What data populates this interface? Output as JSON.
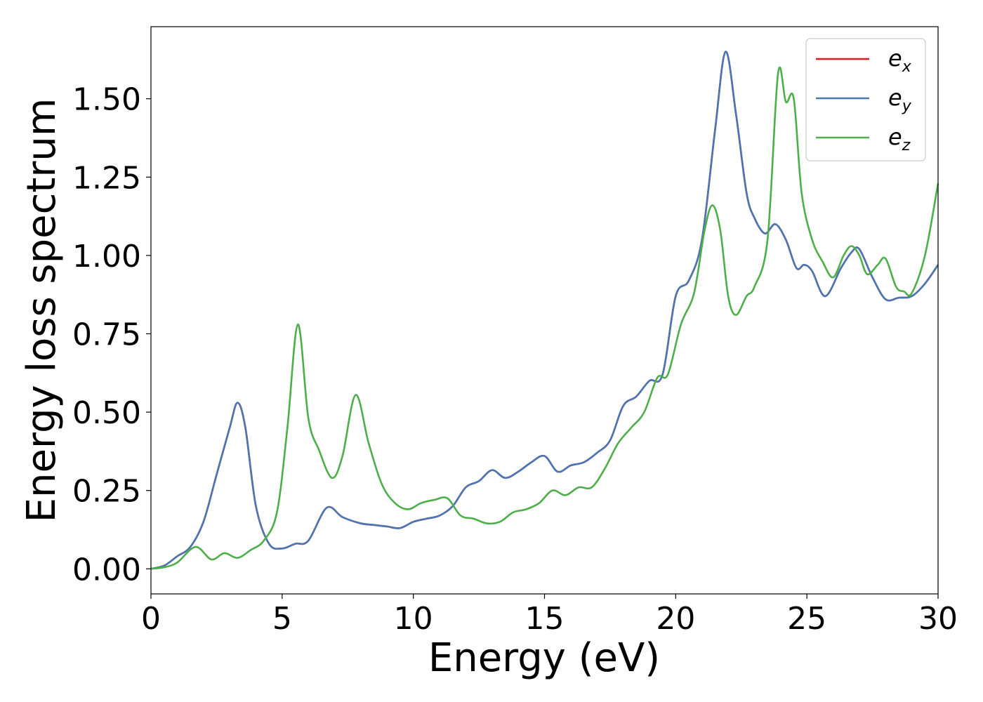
{
  "chart_data": {
    "type": "line",
    "title": "",
    "xlabel": "Energy (eV)",
    "ylabel": "Energy loss spectrum",
    "xlim": [
      0,
      30
    ],
    "ylim": [
      -0.08,
      1.73
    ],
    "xticks": [
      0,
      5,
      10,
      15,
      20,
      25,
      30
    ],
    "xtick_labels": [
      "0",
      "5",
      "10",
      "15",
      "20",
      "25",
      "30"
    ],
    "yticks": [
      0.0,
      0.25,
      0.5,
      0.75,
      1.0,
      1.25,
      1.5
    ],
    "ytick_labels": [
      "0.00",
      "0.25",
      "0.50",
      "0.75",
      "1.00",
      "1.25",
      "1.50"
    ],
    "grid": false,
    "legend_position": "top-right",
    "series": [
      {
        "name": "e_x",
        "legend_base": "e",
        "legend_sub": "x",
        "color": "#e41a1c",
        "x": [
          0.0,
          0.5,
          1.0,
          1.5,
          2.0,
          2.5,
          3.0,
          3.3,
          3.6,
          4.0,
          4.5,
          5.0,
          5.5,
          6.0,
          6.7,
          7.3,
          8.0,
          8.5,
          9.0,
          9.5,
          10.0,
          10.5,
          11.0,
          11.5,
          12.0,
          12.5,
          13.0,
          13.5,
          14.0,
          14.5,
          15.0,
          15.5,
          16.0,
          16.5,
          17.0,
          17.5,
          18.0,
          18.5,
          19.0,
          19.5,
          20.0,
          20.5,
          21.0,
          21.5,
          21.9,
          22.3,
          22.7,
          23.0,
          23.4,
          23.8,
          24.2,
          24.6,
          24.9,
          25.2,
          25.7,
          26.3,
          26.7,
          27.0,
          27.5,
          28.0,
          28.5,
          29.0,
          29.5,
          30.0
        ],
        "values": [
          0.0,
          0.01,
          0.04,
          0.07,
          0.15,
          0.3,
          0.45,
          0.53,
          0.45,
          0.2,
          0.08,
          0.065,
          0.08,
          0.09,
          0.195,
          0.165,
          0.145,
          0.14,
          0.135,
          0.13,
          0.15,
          0.16,
          0.17,
          0.2,
          0.26,
          0.28,
          0.315,
          0.29,
          0.31,
          0.34,
          0.36,
          0.31,
          0.33,
          0.34,
          0.37,
          0.41,
          0.52,
          0.55,
          0.6,
          0.62,
          0.87,
          0.92,
          1.05,
          1.4,
          1.65,
          1.45,
          1.2,
          1.12,
          1.07,
          1.1,
          1.05,
          0.96,
          0.97,
          0.95,
          0.87,
          0.96,
          1.01,
          1.02,
          0.93,
          0.86,
          0.865,
          0.87,
          0.91,
          0.97
        ]
      },
      {
        "name": "e_y",
        "legend_base": "e",
        "legend_sub": "y",
        "color": "#4a77b4",
        "x": [
          0.0,
          0.5,
          1.0,
          1.5,
          2.0,
          2.5,
          3.0,
          3.3,
          3.6,
          4.0,
          4.5,
          5.0,
          5.5,
          6.0,
          6.7,
          7.3,
          8.0,
          8.5,
          9.0,
          9.5,
          10.0,
          10.5,
          11.0,
          11.5,
          12.0,
          12.5,
          13.0,
          13.5,
          14.0,
          14.5,
          15.0,
          15.5,
          16.0,
          16.5,
          17.0,
          17.5,
          18.0,
          18.5,
          19.0,
          19.5,
          20.0,
          20.5,
          21.0,
          21.5,
          21.9,
          22.3,
          22.7,
          23.0,
          23.4,
          23.8,
          24.2,
          24.6,
          24.9,
          25.2,
          25.7,
          26.3,
          26.7,
          27.0,
          27.5,
          28.0,
          28.5,
          29.0,
          29.5,
          30.0
        ],
        "values": [
          0.0,
          0.01,
          0.04,
          0.07,
          0.15,
          0.3,
          0.45,
          0.53,
          0.45,
          0.2,
          0.08,
          0.065,
          0.08,
          0.09,
          0.195,
          0.165,
          0.145,
          0.14,
          0.135,
          0.13,
          0.15,
          0.16,
          0.17,
          0.2,
          0.26,
          0.28,
          0.315,
          0.29,
          0.31,
          0.34,
          0.36,
          0.31,
          0.33,
          0.34,
          0.37,
          0.41,
          0.52,
          0.55,
          0.6,
          0.62,
          0.87,
          0.92,
          1.05,
          1.4,
          1.65,
          1.45,
          1.2,
          1.12,
          1.07,
          1.1,
          1.05,
          0.96,
          0.97,
          0.95,
          0.87,
          0.96,
          1.01,
          1.02,
          0.93,
          0.86,
          0.865,
          0.87,
          0.91,
          0.97
        ]
      },
      {
        "name": "e_z",
        "legend_base": "e",
        "legend_sub": "z",
        "color": "#4daf4a",
        "x": [
          0.0,
          0.5,
          1.0,
          1.7,
          2.3,
          2.8,
          3.3,
          3.8,
          4.3,
          4.8,
          5.2,
          5.6,
          6.0,
          6.4,
          6.9,
          7.3,
          7.8,
          8.3,
          8.8,
          9.3,
          9.8,
          10.3,
          10.8,
          11.3,
          11.8,
          12.3,
          12.8,
          13.3,
          13.8,
          14.3,
          14.8,
          15.3,
          15.8,
          16.3,
          16.8,
          17.3,
          17.8,
          18.3,
          18.8,
          19.3,
          19.7,
          20.2,
          20.7,
          21.1,
          21.4,
          21.7,
          22.0,
          22.3,
          22.7,
          23.0,
          23.5,
          23.9,
          24.2,
          24.5,
          24.8,
          25.2,
          25.6,
          26.0,
          26.4,
          26.7,
          27.0,
          27.3,
          27.7,
          28.0,
          28.4,
          28.7,
          29.0,
          29.5,
          30.0
        ],
        "values": [
          0.0,
          0.005,
          0.02,
          0.07,
          0.03,
          0.05,
          0.035,
          0.06,
          0.09,
          0.18,
          0.45,
          0.78,
          0.48,
          0.38,
          0.29,
          0.36,
          0.555,
          0.4,
          0.27,
          0.21,
          0.19,
          0.21,
          0.22,
          0.225,
          0.17,
          0.16,
          0.145,
          0.15,
          0.18,
          0.19,
          0.21,
          0.25,
          0.235,
          0.26,
          0.26,
          0.32,
          0.4,
          0.45,
          0.5,
          0.61,
          0.62,
          0.78,
          0.88,
          1.08,
          1.16,
          1.08,
          0.87,
          0.81,
          0.87,
          0.9,
          1.05,
          1.58,
          1.49,
          1.5,
          1.2,
          1.05,
          0.98,
          0.93,
          1.0,
          1.03,
          1.0,
          0.94,
          0.97,
          0.99,
          0.9,
          0.885,
          0.88,
          1.0,
          1.23
        ]
      }
    ]
  }
}
